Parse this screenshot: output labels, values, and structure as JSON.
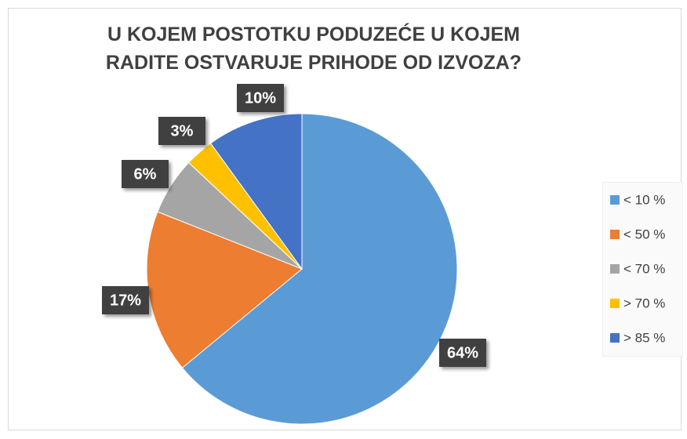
{
  "chart_data": {
    "type": "pie",
    "title": "U KOJEM POSTOTKU PODUZEĆE U KOJEM RADITE OSTVARUJE PRIHODE OD IZVOZA?",
    "categories": [
      "< 10 %",
      "< 50 %",
      "< 70 %",
      "> 70 %",
      "> 85 %"
    ],
    "values": [
      64,
      17,
      6,
      3,
      10
    ],
    "value_labels": [
      "64%",
      "17%",
      "6%",
      "3%",
      "10%"
    ],
    "colors": [
      "#5b9bd5",
      "#ed7d31",
      "#a5a5a5",
      "#ffc000",
      "#4472c4"
    ],
    "legend": "right"
  }
}
